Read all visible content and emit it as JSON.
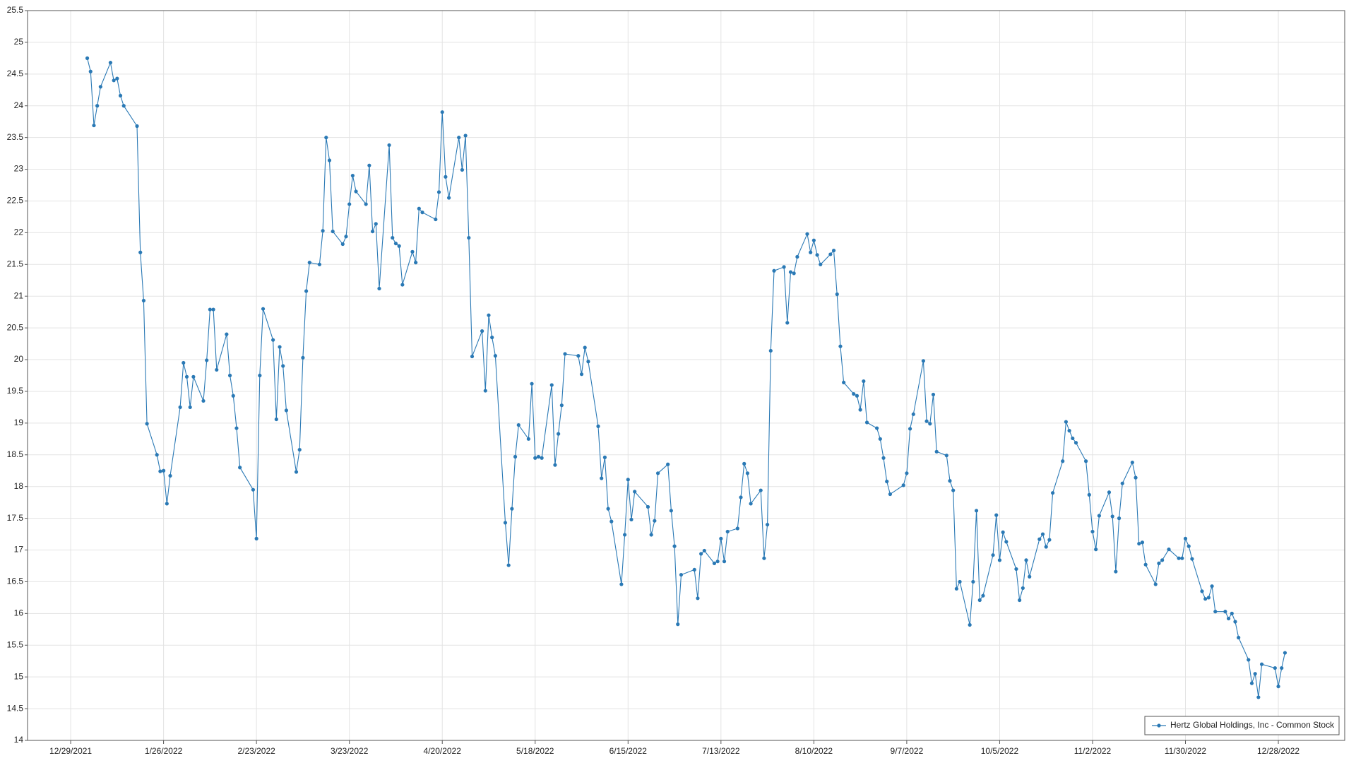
{
  "chart_data": {
    "type": "line",
    "x": [
      "2022-01-03",
      "2022-01-04",
      "2022-01-05",
      "2022-01-06",
      "2022-01-07",
      "2022-01-10",
      "2022-01-11",
      "2022-01-12",
      "2022-01-13",
      "2022-01-14",
      "2022-01-18",
      "2022-01-19",
      "2022-01-20",
      "2022-01-21",
      "2022-01-24",
      "2022-01-25",
      "2022-01-26",
      "2022-01-27",
      "2022-01-28",
      "2022-01-31",
      "2022-02-01",
      "2022-02-02",
      "2022-02-03",
      "2022-02-04",
      "2022-02-07",
      "2022-02-08",
      "2022-02-09",
      "2022-02-10",
      "2022-02-11",
      "2022-02-14",
      "2022-02-15",
      "2022-02-16",
      "2022-02-17",
      "2022-02-18",
      "2022-02-22",
      "2022-02-23",
      "2022-02-24",
      "2022-02-25",
      "2022-02-28",
      "2022-03-01",
      "2022-03-02",
      "2022-03-03",
      "2022-03-04",
      "2022-03-07",
      "2022-03-08",
      "2022-03-09",
      "2022-03-10",
      "2022-03-11",
      "2022-03-14",
      "2022-03-15",
      "2022-03-16",
      "2022-03-17",
      "2022-03-18",
      "2022-03-21",
      "2022-03-22",
      "2022-03-23",
      "2022-03-24",
      "2022-03-25",
      "2022-03-28",
      "2022-03-29",
      "2022-03-30",
      "2022-03-31",
      "2022-04-01",
      "2022-04-04",
      "2022-04-05",
      "2022-04-06",
      "2022-04-07",
      "2022-04-08",
      "2022-04-11",
      "2022-04-12",
      "2022-04-13",
      "2022-04-14",
      "2022-04-18",
      "2022-04-19",
      "2022-04-20",
      "2022-04-21",
      "2022-04-22",
      "2022-04-25",
      "2022-04-26",
      "2022-04-27",
      "2022-04-28",
      "2022-04-29",
      "2022-05-02",
      "2022-05-03",
      "2022-05-04",
      "2022-05-05",
      "2022-05-06",
      "2022-05-09",
      "2022-05-10",
      "2022-05-11",
      "2022-05-12",
      "2022-05-13",
      "2022-05-16",
      "2022-05-17",
      "2022-05-18",
      "2022-05-19",
      "2022-05-20",
      "2022-05-23",
      "2022-05-24",
      "2022-05-25",
      "2022-05-26",
      "2022-05-27",
      "2022-05-31",
      "2022-06-01",
      "2022-06-02",
      "2022-06-03",
      "2022-06-06",
      "2022-06-07",
      "2022-06-08",
      "2022-06-09",
      "2022-06-10",
      "2022-06-13",
      "2022-06-14",
      "2022-06-15",
      "2022-06-16",
      "2022-06-17",
      "2022-06-21",
      "2022-06-22",
      "2022-06-23",
      "2022-06-24",
      "2022-06-27",
      "2022-06-28",
      "2022-06-29",
      "2022-06-30",
      "2022-07-01",
      "2022-07-05",
      "2022-07-06",
      "2022-07-07",
      "2022-07-08",
      "2022-07-11",
      "2022-07-12",
      "2022-07-13",
      "2022-07-14",
      "2022-07-15",
      "2022-07-18",
      "2022-07-19",
      "2022-07-20",
      "2022-07-21",
      "2022-07-22",
      "2022-07-25",
      "2022-07-26",
      "2022-07-27",
      "2022-07-28",
      "2022-07-29",
      "2022-08-01",
      "2022-08-02",
      "2022-08-03",
      "2022-08-04",
      "2022-08-05",
      "2022-08-08",
      "2022-08-09",
      "2022-08-10",
      "2022-08-11",
      "2022-08-12",
      "2022-08-15",
      "2022-08-16",
      "2022-08-17",
      "2022-08-18",
      "2022-08-19",
      "2022-08-22",
      "2022-08-23",
      "2022-08-24",
      "2022-08-25",
      "2022-08-26",
      "2022-08-29",
      "2022-08-30",
      "2022-08-31",
      "2022-09-01",
      "2022-09-02",
      "2022-09-06",
      "2022-09-07",
      "2022-09-08",
      "2022-09-09",
      "2022-09-12",
      "2022-09-13",
      "2022-09-14",
      "2022-09-15",
      "2022-09-16",
      "2022-09-19",
      "2022-09-20",
      "2022-09-21",
      "2022-09-22",
      "2022-09-23",
      "2022-09-26",
      "2022-09-27",
      "2022-09-28",
      "2022-09-29",
      "2022-09-30",
      "2022-10-03",
      "2022-10-04",
      "2022-10-05",
      "2022-10-06",
      "2022-10-07",
      "2022-10-10",
      "2022-10-11",
      "2022-10-12",
      "2022-10-13",
      "2022-10-14",
      "2022-10-17",
      "2022-10-18",
      "2022-10-19",
      "2022-10-20",
      "2022-10-21",
      "2022-10-24",
      "2022-10-25",
      "2022-10-26",
      "2022-10-27",
      "2022-10-28",
      "2022-10-31",
      "2022-11-01",
      "2022-11-02",
      "2022-11-03",
      "2022-11-04",
      "2022-11-07",
      "2022-11-08",
      "2022-11-09",
      "2022-11-10",
      "2022-11-11",
      "2022-11-14",
      "2022-11-15",
      "2022-11-16",
      "2022-11-17",
      "2022-11-18",
      "2022-11-21",
      "2022-11-22",
      "2022-11-23",
      "2022-11-25",
      "2022-11-28",
      "2022-11-29",
      "2022-11-30",
      "2022-12-01",
      "2022-12-02",
      "2022-12-05",
      "2022-12-06",
      "2022-12-07",
      "2022-12-08",
      "2022-12-09",
      "2022-12-12",
      "2022-12-13",
      "2022-12-14",
      "2022-12-15",
      "2022-12-16",
      "2022-12-19",
      "2022-12-20",
      "2022-12-21",
      "2022-12-22",
      "2022-12-23",
      "2022-12-27",
      "2022-12-28",
      "2022-12-29",
      "2022-12-30"
    ],
    "series": [
      {
        "name": "Hertz Global Holdings, Inc - Common Stock",
        "color": "#2a79b5",
        "values": [
          24.75,
          24.54,
          23.69,
          24.0,
          24.3,
          24.68,
          24.4,
          24.43,
          24.16,
          24.0,
          23.68,
          21.69,
          20.93,
          18.99,
          18.5,
          18.24,
          18.25,
          17.73,
          18.17,
          19.25,
          19.95,
          19.73,
          19.25,
          19.73,
          19.35,
          19.99,
          20.79,
          20.79,
          19.84,
          20.4,
          19.75,
          19.43,
          18.92,
          18.3,
          17.95,
          17.18,
          19.75,
          20.8,
          20.31,
          19.06,
          20.2,
          19.9,
          19.2,
          18.23,
          18.58,
          20.03,
          21.08,
          21.53,
          21.5,
          22.03,
          23.5,
          23.14,
          22.02,
          21.82,
          21.94,
          22.45,
          22.9,
          22.65,
          22.45,
          23.06,
          22.02,
          22.14,
          21.12,
          23.38,
          21.92,
          21.83,
          21.79,
          21.18,
          21.7,
          21.53,
          22.38,
          22.32,
          22.21,
          22.64,
          23.9,
          22.88,
          22.55,
          23.5,
          22.99,
          23.53,
          21.92,
          20.05,
          20.45,
          19.51,
          20.7,
          20.35,
          20.06,
          17.43,
          16.76,
          17.65,
          18.47,
          18.97,
          18.75,
          19.62,
          18.45,
          18.47,
          18.45,
          19.6,
          18.34,
          18.83,
          19.28,
          20.09,
          20.06,
          19.77,
          20.19,
          19.97,
          18.95,
          18.13,
          18.46,
          17.65,
          17.45,
          16.46,
          17.24,
          18.11,
          17.48,
          17.92,
          17.68,
          17.24,
          17.46,
          18.21,
          18.35,
          17.62,
          17.06,
          15.83,
          16.61,
          16.69,
          16.24,
          16.94,
          16.99,
          16.79,
          16.82,
          17.18,
          16.82,
          17.29,
          17.34,
          17.83,
          18.36,
          18.21,
          17.73,
          17.94,
          16.87,
          17.4,
          20.14,
          21.4,
          21.46,
          20.58,
          21.38,
          21.36,
          21.62,
          21.98,
          21.69,
          21.88,
          21.65,
          21.5,
          21.66,
          21.72,
          21.03,
          20.21,
          19.64,
          19.46,
          19.43,
          19.21,
          19.66,
          19.01,
          18.92,
          18.75,
          18.45,
          18.08,
          17.88,
          18.02,
          18.21,
          18.91,
          19.14,
          19.98,
          19.03,
          18.99,
          19.45,
          18.55,
          18.49,
          18.09,
          17.94,
          16.39,
          16.5,
          15.82,
          16.5,
          17.62,
          16.21,
          16.28,
          16.92,
          17.55,
          16.84,
          17.28,
          17.13,
          16.7,
          16.21,
          16.4,
          16.84,
          16.58,
          17.17,
          17.25,
          17.05,
          17.16,
          17.9,
          18.4,
          19.02,
          18.88,
          18.76,
          18.69,
          18.4,
          17.87,
          17.29,
          17.01,
          17.54,
          17.91,
          17.53,
          16.66,
          17.5,
          18.05,
          18.38,
          18.14,
          17.1,
          17.12,
          16.77,
          16.46,
          16.79,
          16.84,
          17.01,
          16.87,
          16.87,
          17.18,
          17.06,
          16.86,
          16.35,
          16.23,
          16.25,
          16.43,
          16.03,
          16.03,
          15.92,
          16.0,
          15.87,
          15.62,
          15.27,
          14.9,
          15.05,
          14.68,
          15.2,
          15.14,
          14.85,
          15.14,
          15.38
        ]
      }
    ],
    "xlim": [
      "2021-12-16",
      "2023-01-17"
    ],
    "xticks": [
      {
        "value": "2021-12-29",
        "label": "12/29/2021"
      },
      {
        "value": "2022-01-26",
        "label": "1/26/2022"
      },
      {
        "value": "2022-02-23",
        "label": "2/23/2022"
      },
      {
        "value": "2022-03-23",
        "label": "3/23/2022"
      },
      {
        "value": "2022-04-20",
        "label": "4/20/2022"
      },
      {
        "value": "2022-05-18",
        "label": "5/18/2022"
      },
      {
        "value": "2022-06-15",
        "label": "6/15/2022"
      },
      {
        "value": "2022-07-13",
        "label": "7/13/2022"
      },
      {
        "value": "2022-08-10",
        "label": "8/10/2022"
      },
      {
        "value": "2022-09-07",
        "label": "9/7/2022"
      },
      {
        "value": "2022-10-05",
        "label": "10/5/2022"
      },
      {
        "value": "2022-11-02",
        "label": "11/2/2022"
      },
      {
        "value": "2022-11-30",
        "label": "11/30/2022"
      },
      {
        "value": "2022-12-28",
        "label": "12/28/2022"
      }
    ],
    "ylim": [
      14,
      25.5
    ],
    "yticks": [
      14,
      14.5,
      15,
      15.5,
      16,
      16.5,
      17,
      17.5,
      18,
      18.5,
      19,
      19.5,
      20,
      20.5,
      21,
      21.5,
      22,
      22.5,
      23,
      23.5,
      24,
      24.5,
      25,
      25.5
    ],
    "grid": true,
    "legend": "lower right"
  }
}
